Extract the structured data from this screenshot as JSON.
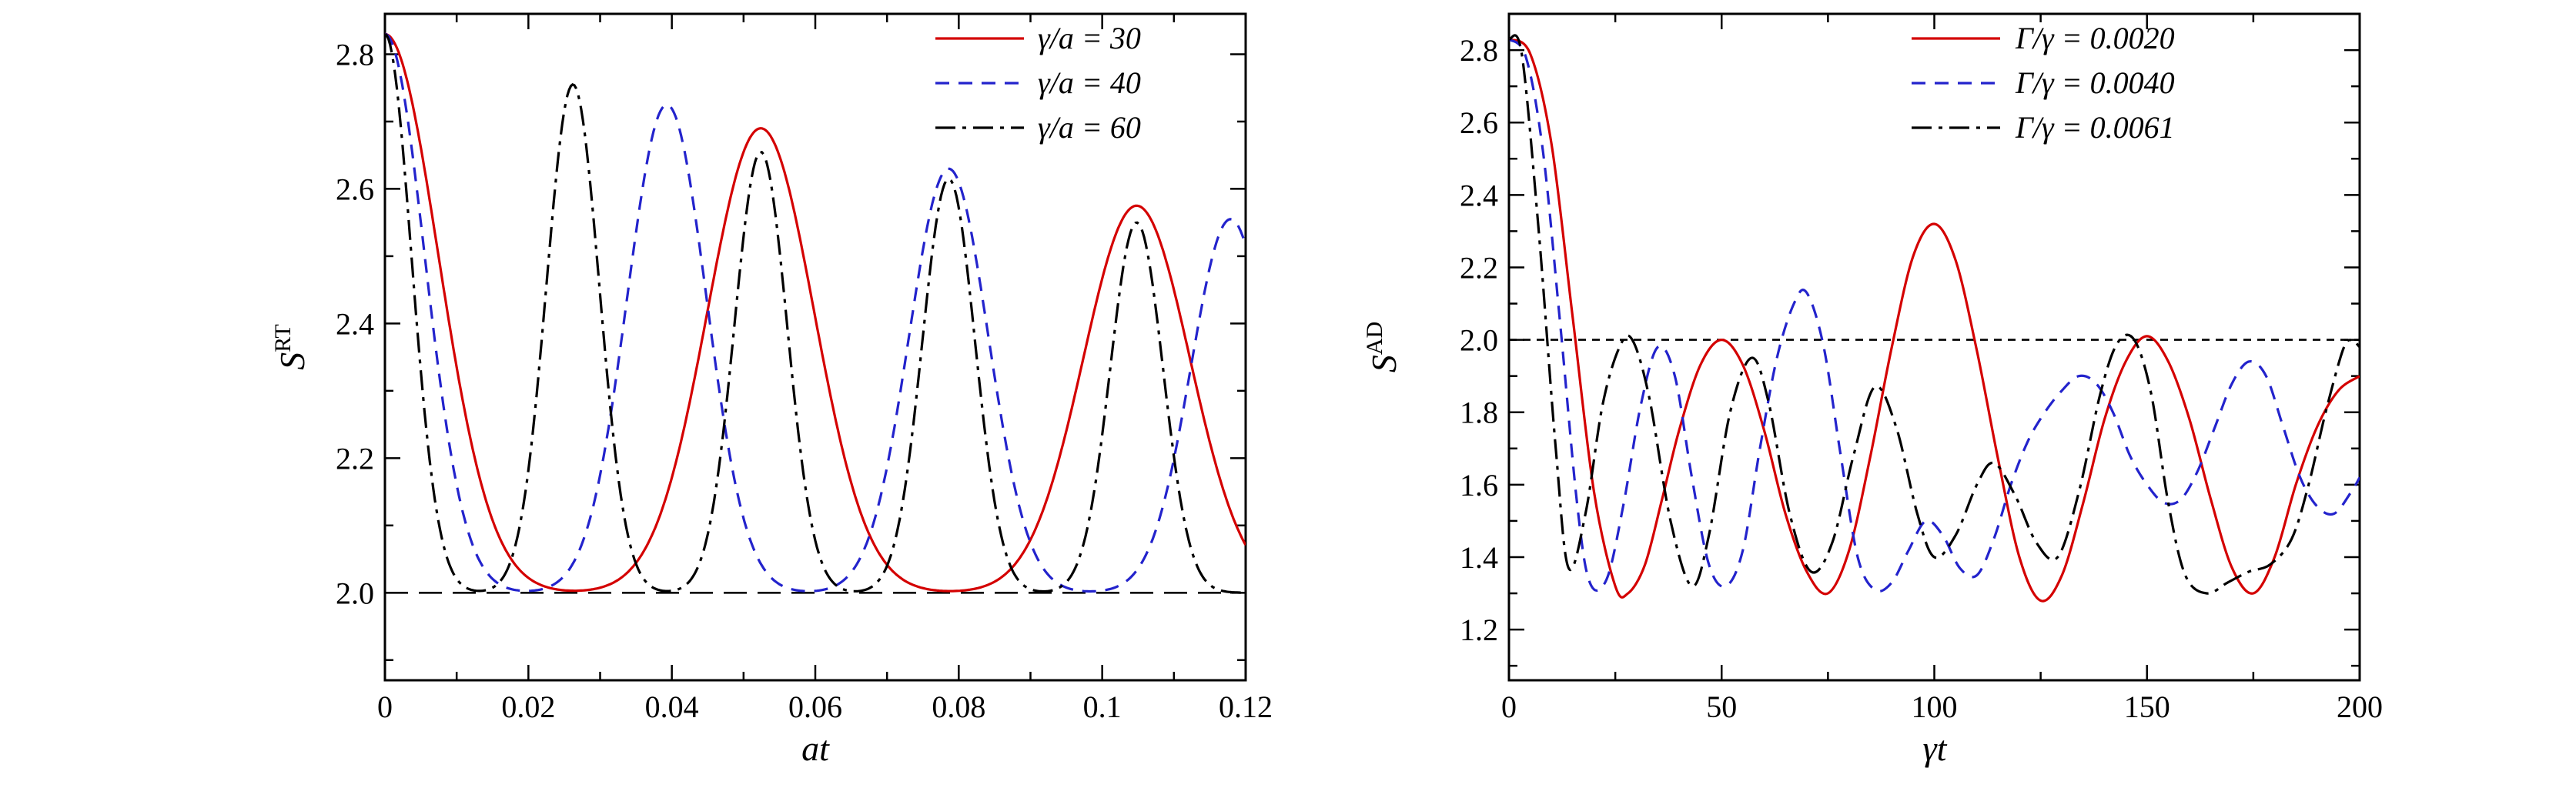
{
  "figure": {
    "background": "#ffffff"
  },
  "chart_data": [
    {
      "name": "left-chart",
      "type": "line",
      "xlabel": "at",
      "ylabel": {
        "base": "S",
        "sup": "RT"
      },
      "axes": {
        "x_range": [
          0,
          0.12
        ],
        "y_range": [
          1.87,
          2.86
        ],
        "x_ticks": {
          "values": [
            0,
            0.02,
            0.04,
            0.06,
            0.08,
            0.1,
            0.12
          ],
          "labels": [
            "0",
            "0.02",
            "0.04",
            "0.06",
            "0.08",
            "0.1",
            "0.12"
          ],
          "minor_step": 0.01
        },
        "y_ticks": {
          "values": [
            2.0,
            2.2,
            2.4,
            2.6,
            2.8
          ],
          "labels": [
            "2.0",
            "2.2",
            "2.4",
            "2.6",
            "2.8"
          ],
          "minor_step": 0.1
        },
        "grid": false,
        "legend_position": "top-right-inside"
      },
      "reference_line": {
        "y": 2.0,
        "color": "#000000",
        "dash": "30 14"
      },
      "series": [
        {
          "label": "γ/a = 30",
          "color": "#d40000",
          "dash": null,
          "model": "gaussian_revivals",
          "baseline": 2.0,
          "peak_width": 0.0105,
          "peaks": [
            [
              0,
              0.83
            ],
            [
              0.0524,
              0.69
            ],
            [
              0.1048,
              0.575
            ]
          ]
        },
        {
          "label": "γ/a = 40",
          "color": "#2323cc",
          "dash": "18 12",
          "model": "gaussian_revivals",
          "baseline": 2.0,
          "peak_width": 0.0078,
          "peaks": [
            [
              0,
              0.83
            ],
            [
              0.0393,
              0.725
            ],
            [
              0.0786,
              0.63
            ],
            [
              0.1179,
              0.555
            ]
          ]
        },
        {
          "label": "γ/a = 60",
          "color": "#000000",
          "dash": "26 9 5 9",
          "model": "gaussian_revivals",
          "baseline": 2.0,
          "peak_width": 0.0052,
          "peaks": [
            [
              0,
              0.83
            ],
            [
              0.0262,
              0.755
            ],
            [
              0.0524,
              0.655
            ],
            [
              0.0786,
              0.615
            ],
            [
              0.1048,
              0.55
            ]
          ]
        }
      ]
    },
    {
      "name": "right-chart",
      "type": "line",
      "xlabel": "γt",
      "ylabel": {
        "base": "S",
        "sup": "AD"
      },
      "axes": {
        "x_range": [
          0,
          200
        ],
        "y_range": [
          1.06,
          2.9
        ],
        "x_ticks": {
          "values": [
            0,
            50,
            100,
            150,
            200
          ],
          "labels": [
            "0",
            "50",
            "100",
            "150",
            "200"
          ],
          "minor_step": 25
        },
        "y_ticks": {
          "values": [
            1.2,
            1.4,
            1.6,
            1.8,
            2.0,
            2.2,
            2.4,
            2.6,
            2.8
          ],
          "labels": [
            "1.2",
            "1.4",
            "1.6",
            "1.8",
            "2.0",
            "2.2",
            "2.4",
            "2.6",
            "2.8"
          ],
          "minor_step": 0.1
        },
        "grid": false,
        "legend_position": "top-right-inside"
      },
      "reference_line": {
        "y": 2.0,
        "color": "#000000",
        "dash": "10 8"
      },
      "series": [
        {
          "label": "Γ/γ = 0.0020",
          "color": "#d40000",
          "dash": null,
          "model": "points",
          "points": [
            [
              0,
              2.83
            ],
            [
              5,
              2.79
            ],
            [
              10,
              2.54
            ],
            [
              15,
              2.06
            ],
            [
              20,
              1.58
            ],
            [
              25,
              1.32
            ],
            [
              28,
              1.3
            ],
            [
              32,
              1.38
            ],
            [
              36,
              1.56
            ],
            [
              40,
              1.75
            ],
            [
              45,
              1.93
            ],
            [
              50,
              2.0
            ],
            [
              55,
              1.93
            ],
            [
              60,
              1.75
            ],
            [
              65,
              1.52
            ],
            [
              70,
              1.36
            ],
            [
              75,
              1.3
            ],
            [
              80,
              1.42
            ],
            [
              85,
              1.68
            ],
            [
              90,
              1.98
            ],
            [
              95,
              2.23
            ],
            [
              100,
              2.32
            ],
            [
              105,
              2.22
            ],
            [
              110,
              1.97
            ],
            [
              115,
              1.67
            ],
            [
              120,
              1.4
            ],
            [
              125,
              1.28
            ],
            [
              130,
              1.35
            ],
            [
              135,
              1.55
            ],
            [
              140,
              1.78
            ],
            [
              145,
              1.94
            ],
            [
              150,
              2.01
            ],
            [
              155,
              1.94
            ],
            [
              160,
              1.78
            ],
            [
              165,
              1.56
            ],
            [
              170,
              1.37
            ],
            [
              175,
              1.3
            ],
            [
              180,
              1.4
            ],
            [
              185,
              1.6
            ],
            [
              190,
              1.76
            ],
            [
              195,
              1.86
            ],
            [
              200,
              1.9
            ]
          ]
        },
        {
          "label": "Γ/γ = 0.0040",
          "color": "#2323cc",
          "dash": "18 12",
          "model": "points",
          "points": [
            [
              0,
              2.83
            ],
            [
              4,
              2.78
            ],
            [
              8,
              2.52
            ],
            [
              12,
              2.05
            ],
            [
              16,
              1.55
            ],
            [
              19,
              1.33
            ],
            [
              23,
              1.34
            ],
            [
              27,
              1.55
            ],
            [
              31,
              1.82
            ],
            [
              35,
              1.98
            ],
            [
              39,
              1.9
            ],
            [
              43,
              1.62
            ],
            [
              47,
              1.38
            ],
            [
              51,
              1.32
            ],
            [
              55,
              1.42
            ],
            [
              59,
              1.7
            ],
            [
              63,
              1.95
            ],
            [
              67,
              2.1
            ],
            [
              70,
              2.13
            ],
            [
              74,
              1.98
            ],
            [
              78,
              1.68
            ],
            [
              82,
              1.4
            ],
            [
              86,
              1.31
            ],
            [
              90,
              1.33
            ],
            [
              94,
              1.42
            ],
            [
              98,
              1.5
            ],
            [
              102,
              1.46
            ],
            [
              106,
              1.37
            ],
            [
              110,
              1.35
            ],
            [
              114,
              1.45
            ],
            [
              118,
              1.6
            ],
            [
              122,
              1.72
            ],
            [
              126,
              1.8
            ],
            [
              130,
              1.86
            ],
            [
              134,
              1.9
            ],
            [
              138,
              1.88
            ],
            [
              142,
              1.8
            ],
            [
              146,
              1.68
            ],
            [
              150,
              1.6
            ],
            [
              154,
              1.55
            ],
            [
              158,
              1.56
            ],
            [
              162,
              1.64
            ],
            [
              166,
              1.76
            ],
            [
              170,
              1.88
            ],
            [
              174,
              1.94
            ],
            [
              178,
              1.9
            ],
            [
              182,
              1.76
            ],
            [
              186,
              1.62
            ],
            [
              190,
              1.54
            ],
            [
              194,
              1.52
            ],
            [
              198,
              1.58
            ],
            [
              200,
              1.62
            ]
          ]
        },
        {
          "label": "Γ/γ = 0.0061",
          "color": "#000000",
          "dash": "26 9 5 9",
          "model": "points",
          "points": [
            [
              0,
              2.83
            ],
            [
              3,
              2.79
            ],
            [
              7,
              2.3
            ],
            [
              11,
              1.7
            ],
            [
              14,
              1.37
            ],
            [
              18,
              1.52
            ],
            [
              22,
              1.82
            ],
            [
              26,
              1.98
            ],
            [
              29,
              2.0
            ],
            [
              33,
              1.84
            ],
            [
              38,
              1.5
            ],
            [
              43,
              1.32
            ],
            [
              47,
              1.46
            ],
            [
              52,
              1.8
            ],
            [
              57,
              1.95
            ],
            [
              61,
              1.83
            ],
            [
              66,
              1.52
            ],
            [
              71,
              1.36
            ],
            [
              76,
              1.44
            ],
            [
              81,
              1.68
            ],
            [
              86,
              1.87
            ],
            [
              91,
              1.76
            ],
            [
              96,
              1.52
            ],
            [
              100,
              1.4
            ],
            [
              105,
              1.46
            ],
            [
              110,
              1.6
            ],
            [
              114,
              1.66
            ],
            [
              119,
              1.57
            ],
            [
              124,
              1.44
            ],
            [
              129,
              1.4
            ],
            [
              134,
              1.58
            ],
            [
              139,
              1.85
            ],
            [
              143,
              1.99
            ],
            [
              147,
              2.0
            ],
            [
              151,
              1.85
            ],
            [
              155,
              1.55
            ],
            [
              159,
              1.35
            ],
            [
              164,
              1.3
            ],
            [
              169,
              1.33
            ],
            [
              174,
              1.36
            ],
            [
              179,
              1.38
            ],
            [
              184,
              1.45
            ],
            [
              188,
              1.6
            ],
            [
              192,
              1.8
            ],
            [
              196,
              1.97
            ],
            [
              198,
              2.0
            ],
            [
              200,
              1.98
            ]
          ]
        }
      ]
    }
  ]
}
